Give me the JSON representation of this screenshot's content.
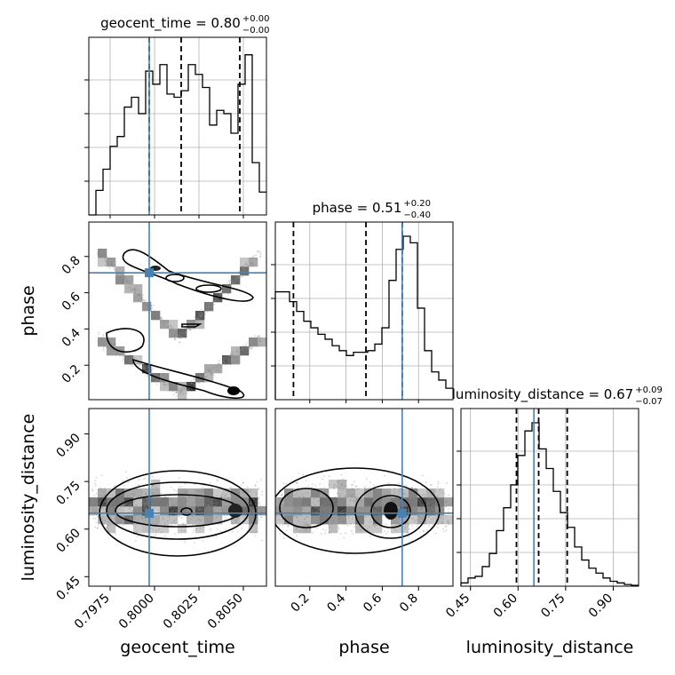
{
  "chart_data": {
    "type": "corner",
    "parameters": [
      "geocent_time",
      "phase",
      "luminosity_distance"
    ],
    "truths": {
      "geocent_time": 0.7997,
      "phase": 0.71,
      "luminosity_distance": 0.65
    },
    "titles": [
      {
        "param": "geocent_time",
        "text": "geocent_time = 0.80",
        "sup": "+0.00",
        "sub": "−0.00"
      },
      {
        "param": "phase",
        "text": "phase = 0.51",
        "sup": "+0.20",
        "sub": "−0.40"
      },
      {
        "param": "luminosity_distance",
        "text": "luminosity_distance = 0.67",
        "sup": "+0.09",
        "sub": "−0.07"
      }
    ],
    "xlabels": [
      "geocent_time",
      "phase",
      "luminosity_distance"
    ],
    "ylabels": [
      "phase",
      "luminosity_distance"
    ],
    "ranges": {
      "geocent_time": [
        0.7963,
        0.8063
      ],
      "phase": [
        0.01,
        0.99
      ],
      "luminosity_distance": [
        0.42,
        0.98
      ]
    },
    "ticks": {
      "geocent_time": [
        "0.7975",
        "0.8000",
        "0.8025",
        "0.8050"
      ],
      "phase": [
        "0.2",
        "0.4",
        "0.6",
        "0.8"
      ],
      "luminosity_distance": [
        "0.45",
        "0.60",
        "0.75",
        "0.90"
      ]
    },
    "histograms": {
      "geocent_time": [
        0.0,
        0.15,
        0.28,
        0.42,
        0.48,
        0.66,
        0.72,
        0.62,
        0.88,
        0.8,
        0.92,
        0.74,
        0.72,
        0.76,
        0.92,
        0.86,
        0.78,
        0.55,
        0.64,
        0.62,
        0.5,
        0.8,
        0.98,
        0.32,
        0.14
      ],
      "phase": [
        0.66,
        0.66,
        0.6,
        0.54,
        0.48,
        0.44,
        0.4,
        0.37,
        0.33,
        0.3,
        0.27,
        0.29,
        0.29,
        0.3,
        0.34,
        0.44,
        0.73,
        0.92,
        1.0,
        0.96,
        0.56,
        0.3,
        0.17,
        0.12,
        0.07
      ],
      "luminosity_distance": [
        0.02,
        0.05,
        0.06,
        0.12,
        0.2,
        0.34,
        0.48,
        0.62,
        0.8,
        0.95,
        1.0,
        0.84,
        0.72,
        0.58,
        0.45,
        0.36,
        0.24,
        0.16,
        0.11,
        0.08,
        0.05,
        0.03,
        0.02,
        0.01,
        0.005
      ]
    },
    "quantiles": {
      "geocent_time": [
        0.7997,
        0.8015,
        0.8048
      ],
      "phase": [
        0.11,
        0.51,
        0.71
      ],
      "luminosity_distance": [
        0.595,
        0.665,
        0.755
      ]
    }
  }
}
